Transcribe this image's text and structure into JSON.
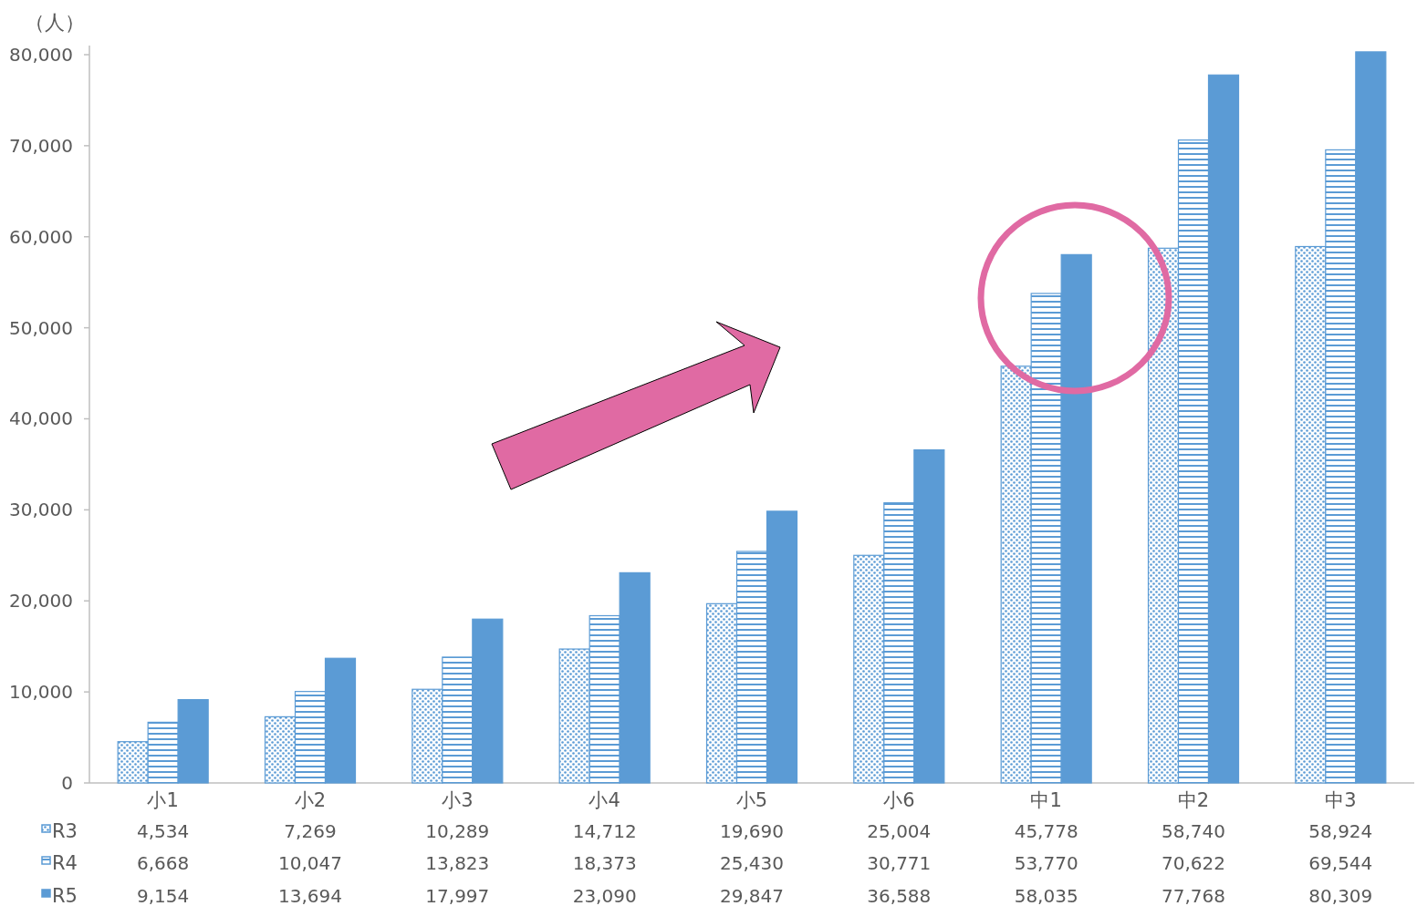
{
  "chart_data": {
    "type": "bar",
    "ylabel": "（人）",
    "categories": [
      "小1",
      "小2",
      "小3",
      "小4",
      "小5",
      "小6",
      "中1",
      "中2",
      "中3"
    ],
    "series": [
      {
        "name": "R3",
        "color": "#5b9bd5",
        "values": [
          4534,
          7269,
          10289,
          14712,
          19690,
          25004,
          45778,
          58740,
          58924
        ],
        "value_labels": [
          "4,534",
          "7,269",
          "10,289",
          "14,712",
          "19,690",
          "25,004",
          "45,778",
          "58,740",
          "58,924"
        ]
      },
      {
        "name": "R4",
        "color": "#5b9bd5",
        "values": [
          6668,
          10047,
          13823,
          18373,
          25430,
          30771,
          53770,
          70622,
          69544
        ],
        "value_labels": [
          "6,668",
          "10,047",
          "13,823",
          "18,373",
          "25,430",
          "30,771",
          "53,770",
          "70,622",
          "69,544"
        ]
      },
      {
        "name": "R5",
        "color": "#5b9bd5",
        "values": [
          9154,
          13694,
          17997,
          23090,
          29847,
          36588,
          58035,
          77768,
          80309
        ],
        "value_labels": [
          "9,154",
          "13,694",
          "17,997",
          "23,090",
          "29,847",
          "36,588",
          "58,035",
          "77,768",
          "80,309"
        ]
      }
    ],
    "ylim": [
      0,
      81000
    ],
    "yticks": [
      0,
      {
        "value": 10000,
        "label": "10,000"
      },
      {
        "value": 20000,
        "label": "20,000"
      },
      {
        "value": 30000,
        "label": "30,000"
      },
      {
        "value": 40000,
        "label": "40,000"
      },
      {
        "value": 50000,
        "label": "50,000"
      },
      {
        "value": 60000,
        "label": "60,000"
      },
      {
        "value": 70000,
        "label": "70,000"
      },
      {
        "value": 80000,
        "label": "80,000"
      }
    ],
    "legend": "bottom"
  }
}
